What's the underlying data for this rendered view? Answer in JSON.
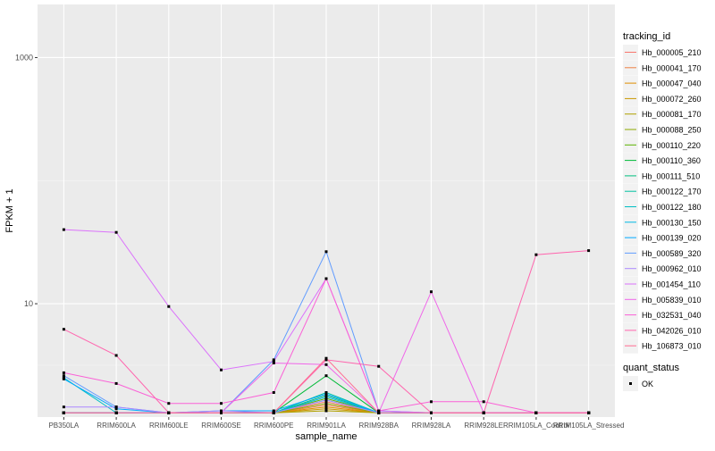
{
  "chart_data": {
    "type": "line",
    "xlabel": "sample_name",
    "ylabel": "FPKM + 1",
    "y_scale": "log10",
    "ylim": [
      1.2,
      2700
    ],
    "y_ticks": [
      {
        "value": 10,
        "label": "10"
      },
      {
        "value": 1000,
        "label": "1000"
      }
    ],
    "grid": true,
    "legend_position": "right",
    "categories": [
      "PB350LA",
      "RRIM600LA",
      "RRIM600LE",
      "RRIM600SE",
      "RRIM600PE",
      "RRIM901LA",
      "RRIM928BA",
      "RRIM928LA",
      "RRIM928LE",
      "RRIM105LA_Control",
      "RRIM105LA_Stressed"
    ],
    "color_legend_title": "tracking_id",
    "shape_legend_title": "quant_status",
    "shape_legend_items": [
      {
        "label": "OK"
      }
    ],
    "series": [
      {
        "name": "Hb_000005_210",
        "color": "#F8766D",
        "values": [
          1.3,
          1.3,
          1.3,
          1.3,
          1.3,
          1.6,
          1.3,
          1.3,
          1.3,
          1.3,
          1.3
        ]
      },
      {
        "name": "Hb_000041_170",
        "color": "#EE8044",
        "values": [
          1.3,
          1.3,
          1.3,
          1.3,
          1.3,
          1.5,
          1.3,
          1.3,
          1.3,
          1.3,
          1.3
        ]
      },
      {
        "name": "Hb_000047_040",
        "color": "#DD8D00",
        "values": [
          1.3,
          1.3,
          1.3,
          1.3,
          1.3,
          1.45,
          1.3,
          1.3,
          1.3,
          1.3,
          1.3
        ]
      },
      {
        "name": "Hb_000072_260",
        "color": "#C99800",
        "values": [
          1.3,
          1.3,
          1.3,
          1.3,
          1.3,
          1.4,
          1.3,
          1.3,
          1.3,
          1.3,
          1.3
        ]
      },
      {
        "name": "Hb_000081_170",
        "color": "#B0A100",
        "values": [
          1.3,
          1.3,
          1.3,
          1.3,
          1.3,
          1.35,
          1.3,
          1.3,
          1.3,
          1.3,
          1.3
        ]
      },
      {
        "name": "Hb_000088_250",
        "color": "#8FAA00",
        "values": [
          1.3,
          1.3,
          1.3,
          1.3,
          1.3,
          1.55,
          1.3,
          1.3,
          1.3,
          1.3,
          1.3
        ]
      },
      {
        "name": "Hb_000110_220",
        "color": "#5BB300",
        "values": [
          1.3,
          1.3,
          1.3,
          1.3,
          1.3,
          1.7,
          1.3,
          1.3,
          1.3,
          1.3,
          1.3
        ]
      },
      {
        "name": "Hb_000110_360",
        "color": "#00BA38",
        "values": [
          1.3,
          1.3,
          1.3,
          1.3,
          1.3,
          2.6,
          1.3,
          1.3,
          1.3,
          1.3,
          1.3
        ]
      },
      {
        "name": "Hb_000111_510",
        "color": "#00BF7D",
        "values": [
          1.3,
          1.3,
          1.3,
          1.3,
          1.3,
          1.8,
          1.3,
          1.3,
          1.3,
          1.3,
          1.3
        ]
      },
      {
        "name": "Hb_000122_170",
        "color": "#00C1A3",
        "values": [
          1.3,
          1.3,
          1.3,
          1.3,
          1.3,
          1.9,
          1.3,
          1.3,
          1.3,
          1.3,
          1.3
        ]
      },
      {
        "name": "Hb_000122_180",
        "color": "#00BFC4",
        "values": [
          2.5,
          1.3,
          1.3,
          1.3,
          1.3,
          1.65,
          1.3,
          1.3,
          1.3,
          1.3,
          1.3
        ]
      },
      {
        "name": "Hb_000130_150",
        "color": "#00B8E5",
        "values": [
          1.3,
          1.3,
          1.3,
          1.3,
          1.3,
          1.75,
          1.3,
          1.3,
          1.3,
          1.3,
          1.3
        ]
      },
      {
        "name": "Hb_000139_020",
        "color": "#00A9FF",
        "values": [
          2.45,
          1.4,
          1.3,
          1.35,
          1.35,
          1.85,
          1.3,
          1.3,
          1.3,
          1.3,
          1.3
        ]
      },
      {
        "name": "Hb_000589_320",
        "color": "#619CFF",
        "values": [
          2.6,
          1.45,
          1.3,
          1.3,
          3.5,
          26.5,
          1.35,
          1.3,
          1.3,
          1.3,
          1.3
        ]
      },
      {
        "name": "Hb_000962_010",
        "color": "#AC88FF",
        "values": [
          1.45,
          1.45,
          1.3,
          1.35,
          1.3,
          1.65,
          1.3,
          1.3,
          1.3,
          1.3,
          1.3
        ]
      },
      {
        "name": "Hb_001454_110",
        "color": "#DB72FB",
        "values": [
          40.0,
          38.0,
          9.5,
          2.9,
          3.4,
          16.0,
          1.35,
          1.3,
          1.3,
          1.3,
          1.3
        ]
      },
      {
        "name": "Hb_005839_010",
        "color": "#F066EA",
        "values": [
          1.3,
          1.3,
          1.3,
          1.3,
          3.3,
          3.2,
          1.3,
          12.5,
          1.3,
          1.3,
          1.3
        ]
      },
      {
        "name": "Hb_032531_040",
        "color": "#FB61D7",
        "values": [
          2.75,
          2.25,
          1.55,
          1.55,
          1.9,
          16.0,
          1.35,
          1.6,
          1.6,
          1.3,
          1.3
        ]
      },
      {
        "name": "Hb_042026_010",
        "color": "#FF65AE",
        "values": [
          6.2,
          3.8,
          1.3,
          1.3,
          1.3,
          3.5,
          3.1,
          1.3,
          1.3,
          25.0,
          27.0
        ]
      },
      {
        "name": "Hb_106873_010",
        "color": "#FF6C91",
        "values": [
          1.3,
          1.3,
          1.3,
          1.3,
          1.3,
          3.6,
          1.3,
          1.3,
          1.3,
          1.3,
          1.3
        ]
      }
    ]
  }
}
